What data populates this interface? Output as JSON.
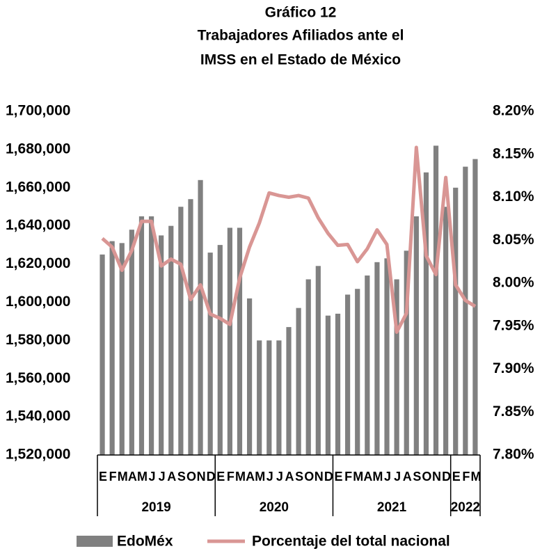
{
  "chart_data": {
    "type": "bar_line",
    "title": [
      "Gráfico 12",
      "Trabajadores Afiliados ante el",
      "IMSS en el Estado de México"
    ],
    "categories": [
      "E",
      "F",
      "M",
      "A",
      "M",
      "J",
      "J",
      "A",
      "S",
      "O",
      "N",
      "D",
      "E",
      "F",
      "M",
      "A",
      "M",
      "J",
      "J",
      "A",
      "S",
      "O",
      "N",
      "D",
      "E",
      "F",
      "M",
      "A",
      "M",
      "J",
      "J",
      "A",
      "S",
      "O",
      "N",
      "D",
      "E",
      "F",
      "M"
    ],
    "groups": [
      {
        "label": "2019",
        "size": 12
      },
      {
        "label": "2020",
        "size": 12
      },
      {
        "label": "2021",
        "size": 12
      },
      {
        "label": "2022",
        "size": 3
      }
    ],
    "series": [
      {
        "name": "EdoMéx",
        "type": "bar",
        "color": "#808080",
        "values": [
          1625000,
          1632000,
          1631000,
          1638000,
          1645000,
          1645000,
          1635000,
          1640000,
          1650000,
          1654000,
          1664000,
          1626000,
          1630000,
          1639000,
          1639000,
          1602000,
          1580000,
          1580000,
          1580000,
          1587000,
          1597000,
          1612000,
          1619000,
          1593000,
          1594000,
          1604000,
          1607000,
          1614000,
          1621000,
          1623000,
          1612000,
          1627000,
          1645000,
          1668000,
          1682000,
          1650000,
          1660000,
          1671000,
          1675000
        ]
      },
      {
        "name": "Porcentaje del total nacional",
        "type": "line",
        "axis": "y2",
        "color": "#d99694",
        "values": [
          8.052,
          8.042,
          8.015,
          8.038,
          8.072,
          8.072,
          8.02,
          8.028,
          8.022,
          7.981,
          7.998,
          7.964,
          7.959,
          7.952,
          8.006,
          8.042,
          8.07,
          8.105,
          8.102,
          8.1,
          8.102,
          8.099,
          8.076,
          8.058,
          8.044,
          8.045,
          8.025,
          8.04,
          8.062,
          8.045,
          7.943,
          7.965,
          8.158,
          8.032,
          8.01,
          8.123,
          7.998,
          7.98,
          7.973
        ]
      }
    ],
    "ylim": [
      1520000,
      1700000
    ],
    "yticks": [
      {
        "value": 1520000,
        "label": "1,520,000"
      },
      {
        "value": 1540000,
        "label": "1,540,000"
      },
      {
        "value": 1560000,
        "label": "1,560,000"
      },
      {
        "value": 1580000,
        "label": "1,580,000"
      },
      {
        "value": 1600000,
        "label": "1,600,000"
      },
      {
        "value": 1620000,
        "label": "1,620,000"
      },
      {
        "value": 1640000,
        "label": "1,640,000"
      },
      {
        "value": 1660000,
        "label": "1,660,000"
      },
      {
        "value": 1680000,
        "label": "1,680,000"
      },
      {
        "value": 1700000,
        "label": "1,700,000"
      }
    ],
    "y2lim": [
      7.8,
      8.2
    ],
    "y2ticks": [
      {
        "value": 7.8,
        "label": "7.80%"
      },
      {
        "value": 7.85,
        "label": "7.85%"
      },
      {
        "value": 7.9,
        "label": "7.90%"
      },
      {
        "value": 7.95,
        "label": "7.95%"
      },
      {
        "value": 8.0,
        "label": "8.00%"
      },
      {
        "value": 8.05,
        "label": "8.05%"
      },
      {
        "value": 8.1,
        "label": "8.10%"
      },
      {
        "value": 8.15,
        "label": "8.15%"
      },
      {
        "value": 8.2,
        "label": "8.20%"
      }
    ],
    "legend": "bottom"
  }
}
